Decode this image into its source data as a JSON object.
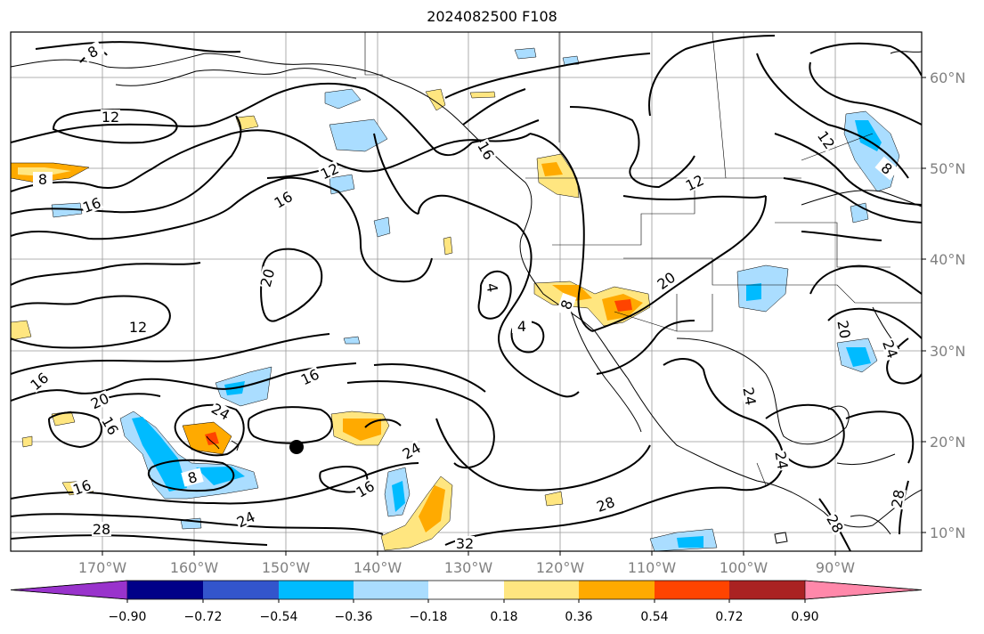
{
  "title": "2024082500 F108",
  "map": {
    "lon_ticks": [
      "170°W",
      "160°W",
      "150°W",
      "140°W",
      "130°W",
      "120°W",
      "110°W",
      "100°W",
      "90°W"
    ],
    "lat_ticks": [
      "60°N",
      "50°N",
      "40°N",
      "30°N",
      "20°N",
      "10°N"
    ],
    "contour_labels": [
      "8",
      "12",
      "8",
      "12",
      "16",
      "16",
      "12",
      "20",
      "16",
      "20",
      "24",
      "16",
      "16",
      "24",
      "16",
      "4",
      "4",
      "8",
      "20",
      "12",
      "8",
      "12",
      "16",
      "28",
      "28",
      "24",
      "32",
      "28",
      "24",
      "24",
      "28",
      "24",
      "20",
      "16",
      "8"
    ],
    "anomaly_colors": [
      "#9933cc",
      "#000088",
      "#3355cc",
      "#00bbff",
      "#aaddff",
      "#ffffff",
      "#ffe680",
      "#ffaa00",
      "#ff4400",
      "#aa2222",
      "#ff88aa"
    ],
    "marker": "filled-circle"
  },
  "colorbar": {
    "ticks": [
      "−0.90",
      "−0.72",
      "−0.54",
      "−0.36",
      "−0.18",
      "0.18",
      "0.36",
      "0.54",
      "0.72",
      "0.90"
    ],
    "colors": [
      "#9933cc",
      "#000088",
      "#3355cc",
      "#00bbff",
      "#aaddff",
      "#ffffff",
      "#ffe680",
      "#ffaa00",
      "#ff4400",
      "#aa2222",
      "#ff88aa"
    ]
  }
}
